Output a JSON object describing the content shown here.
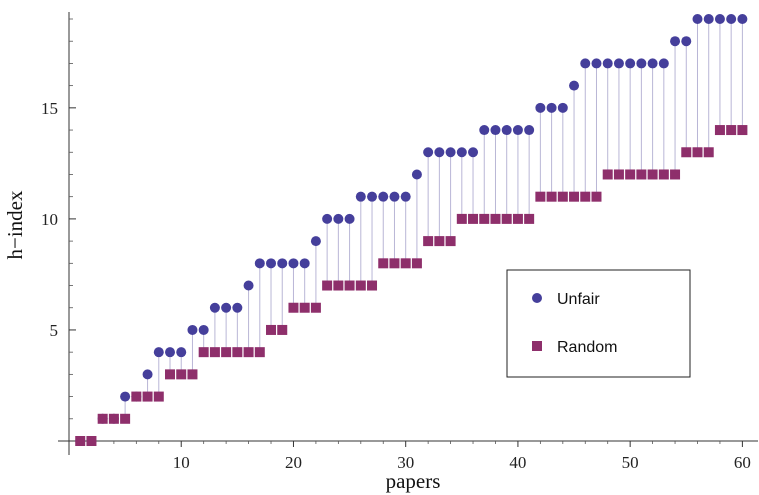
{
  "chart_data": {
    "type": "scatter",
    "xlabel": "papers",
    "ylabel": "h−index",
    "xlim": [
      0,
      60.5
    ],
    "ylim": [
      0,
      19
    ],
    "x_ticks": [
      10,
      20,
      30,
      40,
      50,
      60
    ],
    "y_ticks": [
      5,
      10,
      15
    ],
    "grid": false,
    "legend_position": "lower-right",
    "series": [
      {
        "name": "Unfair",
        "marker": "circle",
        "color": "#453f9b",
        "x": [
          1,
          2,
          3,
          4,
          5,
          6,
          7,
          8,
          9,
          10,
          11,
          12,
          13,
          14,
          15,
          16,
          17,
          18,
          19,
          20,
          21,
          22,
          23,
          24,
          25,
          26,
          27,
          28,
          29,
          30,
          31,
          32,
          33,
          34,
          35,
          36,
          37,
          38,
          39,
          40,
          41,
          42,
          43,
          44,
          45,
          46,
          47,
          48,
          49,
          50,
          51,
          52,
          53,
          54,
          55,
          56,
          57,
          58,
          59,
          60
        ],
        "y": [
          0,
          0,
          1,
          1,
          2,
          2,
          3,
          4,
          4,
          4,
          5,
          5,
          6,
          6,
          6,
          7,
          8,
          8,
          8,
          8,
          8,
          9,
          10,
          10,
          10,
          11,
          11,
          11,
          11,
          11,
          12,
          13,
          13,
          13,
          13,
          13,
          14,
          14,
          14,
          14,
          14,
          15,
          15,
          15,
          16,
          17,
          17,
          17,
          17,
          17,
          17,
          17,
          17,
          18,
          18,
          19,
          19,
          19,
          19,
          19
        ]
      },
      {
        "name": "Random",
        "marker": "square",
        "color": "#8e2f6b",
        "x": [
          1,
          2,
          3,
          4,
          5,
          6,
          7,
          8,
          9,
          10,
          11,
          12,
          13,
          14,
          15,
          16,
          17,
          18,
          19,
          20,
          21,
          22,
          23,
          24,
          25,
          26,
          27,
          28,
          29,
          30,
          31,
          32,
          33,
          34,
          35,
          36,
          37,
          38,
          39,
          40,
          41,
          42,
          43,
          44,
          45,
          46,
          47,
          48,
          49,
          50,
          51,
          52,
          53,
          54,
          55,
          56,
          57,
          58,
          59,
          60
        ],
        "y": [
          0,
          0,
          1,
          1,
          1,
          2,
          2,
          2,
          3,
          3,
          3,
          4,
          4,
          4,
          4,
          4,
          4,
          5,
          5,
          6,
          6,
          6,
          7,
          7,
          7,
          7,
          7,
          8,
          8,
          8,
          8,
          9,
          9,
          9,
          10,
          10,
          10,
          10,
          10,
          10,
          10,
          11,
          11,
          11,
          11,
          11,
          11,
          12,
          12,
          12,
          12,
          12,
          12,
          12,
          13,
          13,
          13,
          14,
          14,
          14
        ]
      }
    ]
  }
}
